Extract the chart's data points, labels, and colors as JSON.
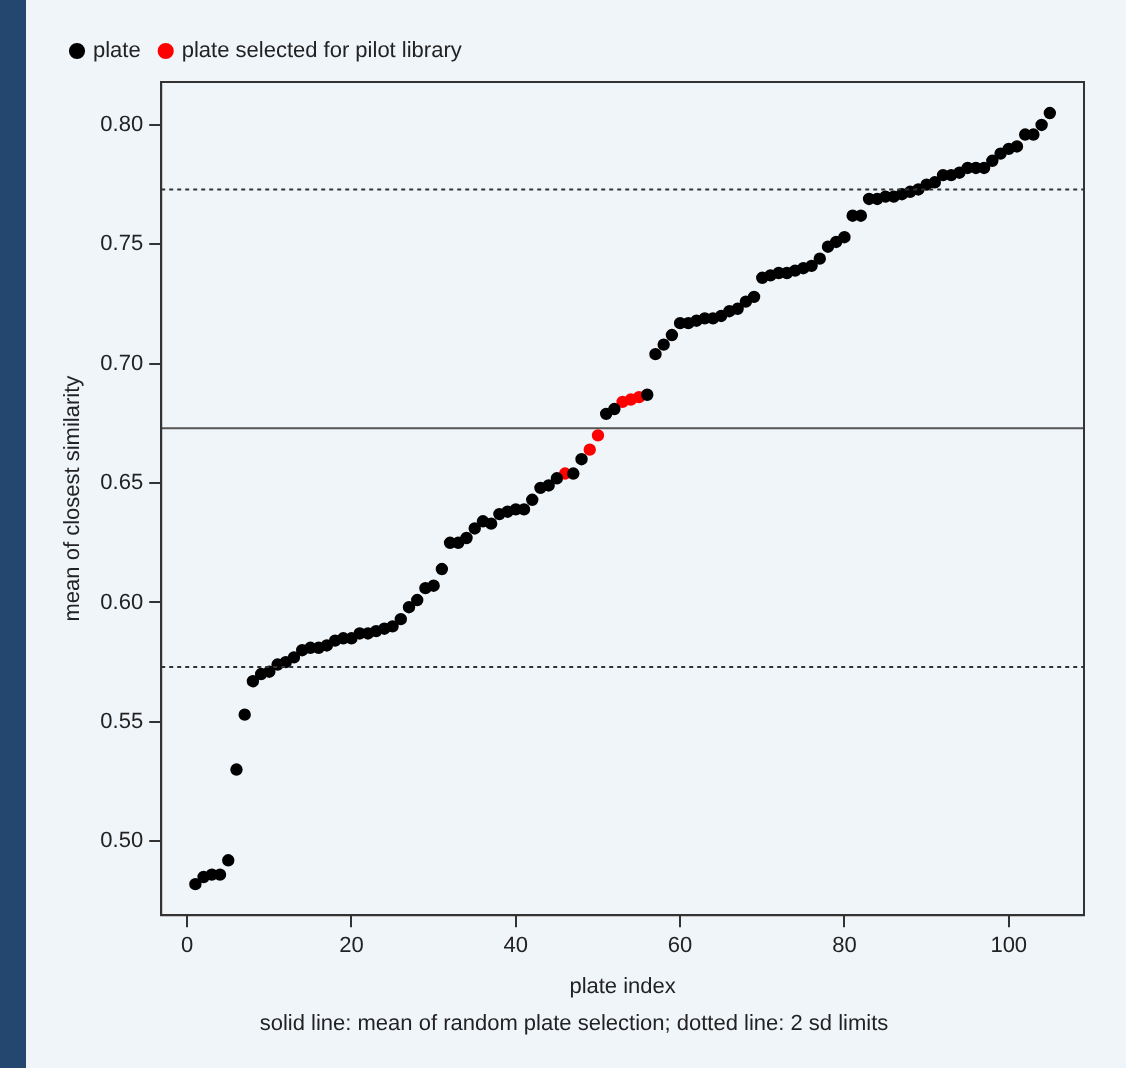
{
  "chart_data": {
    "type": "scatter",
    "xlabel": "plate index",
    "ylabel": "mean of closest similarity",
    "annotations": [
      "solid line: mean of random plate selection; dotted line: 2 sd limits"
    ],
    "xlim": [
      -3.16,
      109.16
    ],
    "ylim": [
      0.469,
      0.818
    ],
    "xticks": [
      0,
      20,
      40,
      60,
      80,
      100
    ],
    "yticks": [
      {
        "value": 0.5,
        "label": "0.50"
      },
      {
        "value": 0.55,
        "label": "0.55"
      },
      {
        "value": 0.6,
        "label": "0.60"
      },
      {
        "value": 0.65,
        "label": "0.65"
      },
      {
        "value": 0.7,
        "label": "0.70"
      },
      {
        "value": 0.75,
        "label": "0.75"
      },
      {
        "value": 0.8,
        "label": "0.80"
      }
    ],
    "grid": false,
    "legend": "top left",
    "marker": "circle",
    "ref_lines": [
      {
        "axis": "y",
        "value": 0.673,
        "line_style": "solid",
        "color": "#555555"
      },
      {
        "axis": "y",
        "value": 0.773,
        "line_style": "dotted",
        "color": "#333333"
      },
      {
        "axis": "y",
        "value": 0.573,
        "line_style": "dotted",
        "color": "#333333"
      }
    ],
    "series": [
      {
        "name": "plate",
        "color": "#000000",
        "x": [
          1,
          2,
          3,
          4,
          5,
          6,
          7,
          8,
          9,
          10,
          11,
          12,
          13,
          14,
          15,
          16,
          17,
          18,
          19,
          20,
          21,
          22,
          23,
          24,
          25,
          26,
          27,
          28,
          29,
          30,
          31,
          32,
          33,
          34,
          35,
          36,
          37,
          38,
          39,
          40,
          41,
          42,
          43,
          44,
          45,
          47,
          48,
          51,
          52,
          56,
          57,
          58,
          59,
          60,
          61,
          62,
          63,
          64,
          65,
          66,
          67,
          68,
          69,
          70,
          71,
          72,
          73,
          74,
          75,
          76,
          77,
          78,
          79,
          80,
          81,
          82,
          83,
          84,
          85,
          86,
          87,
          88,
          89,
          90,
          91,
          92,
          93,
          94,
          95,
          96,
          97,
          98,
          99,
          100,
          101,
          102,
          103,
          104,
          105
        ],
        "values": [
          0.482,
          0.485,
          0.486,
          0.486,
          0.492,
          0.53,
          0.553,
          0.567,
          0.57,
          0.571,
          0.574,
          0.575,
          0.577,
          0.58,
          0.581,
          0.581,
          0.582,
          0.584,
          0.585,
          0.585,
          0.587,
          0.587,
          0.588,
          0.589,
          0.59,
          0.593,
          0.598,
          0.601,
          0.606,
          0.607,
          0.614,
          0.625,
          0.625,
          0.627,
          0.631,
          0.634,
          0.633,
          0.637,
          0.638,
          0.639,
          0.639,
          0.643,
          0.648,
          0.649,
          0.652,
          0.654,
          0.66,
          0.679,
          0.681,
          0.687,
          0.704,
          0.708,
          0.712,
          0.717,
          0.717,
          0.718,
          0.719,
          0.719,
          0.72,
          0.722,
          0.723,
          0.726,
          0.728,
          0.736,
          0.737,
          0.738,
          0.738,
          0.739,
          0.74,
          0.741,
          0.744,
          0.749,
          0.751,
          0.753,
          0.762,
          0.762,
          0.769,
          0.769,
          0.77,
          0.77,
          0.771,
          0.772,
          0.773,
          0.775,
          0.776,
          0.779,
          0.779,
          0.78,
          0.782,
          0.782,
          0.782,
          0.785,
          0.788,
          0.79,
          0.791,
          0.796,
          0.796,
          0.8,
          0.805
        ]
      },
      {
        "name": "plate selected for pilot library",
        "color": "#ff0000",
        "x": [
          46,
          49,
          50,
          53,
          54,
          55
        ],
        "values": [
          0.654,
          0.664,
          0.67,
          0.684,
          0.685,
          0.686
        ]
      }
    ]
  }
}
